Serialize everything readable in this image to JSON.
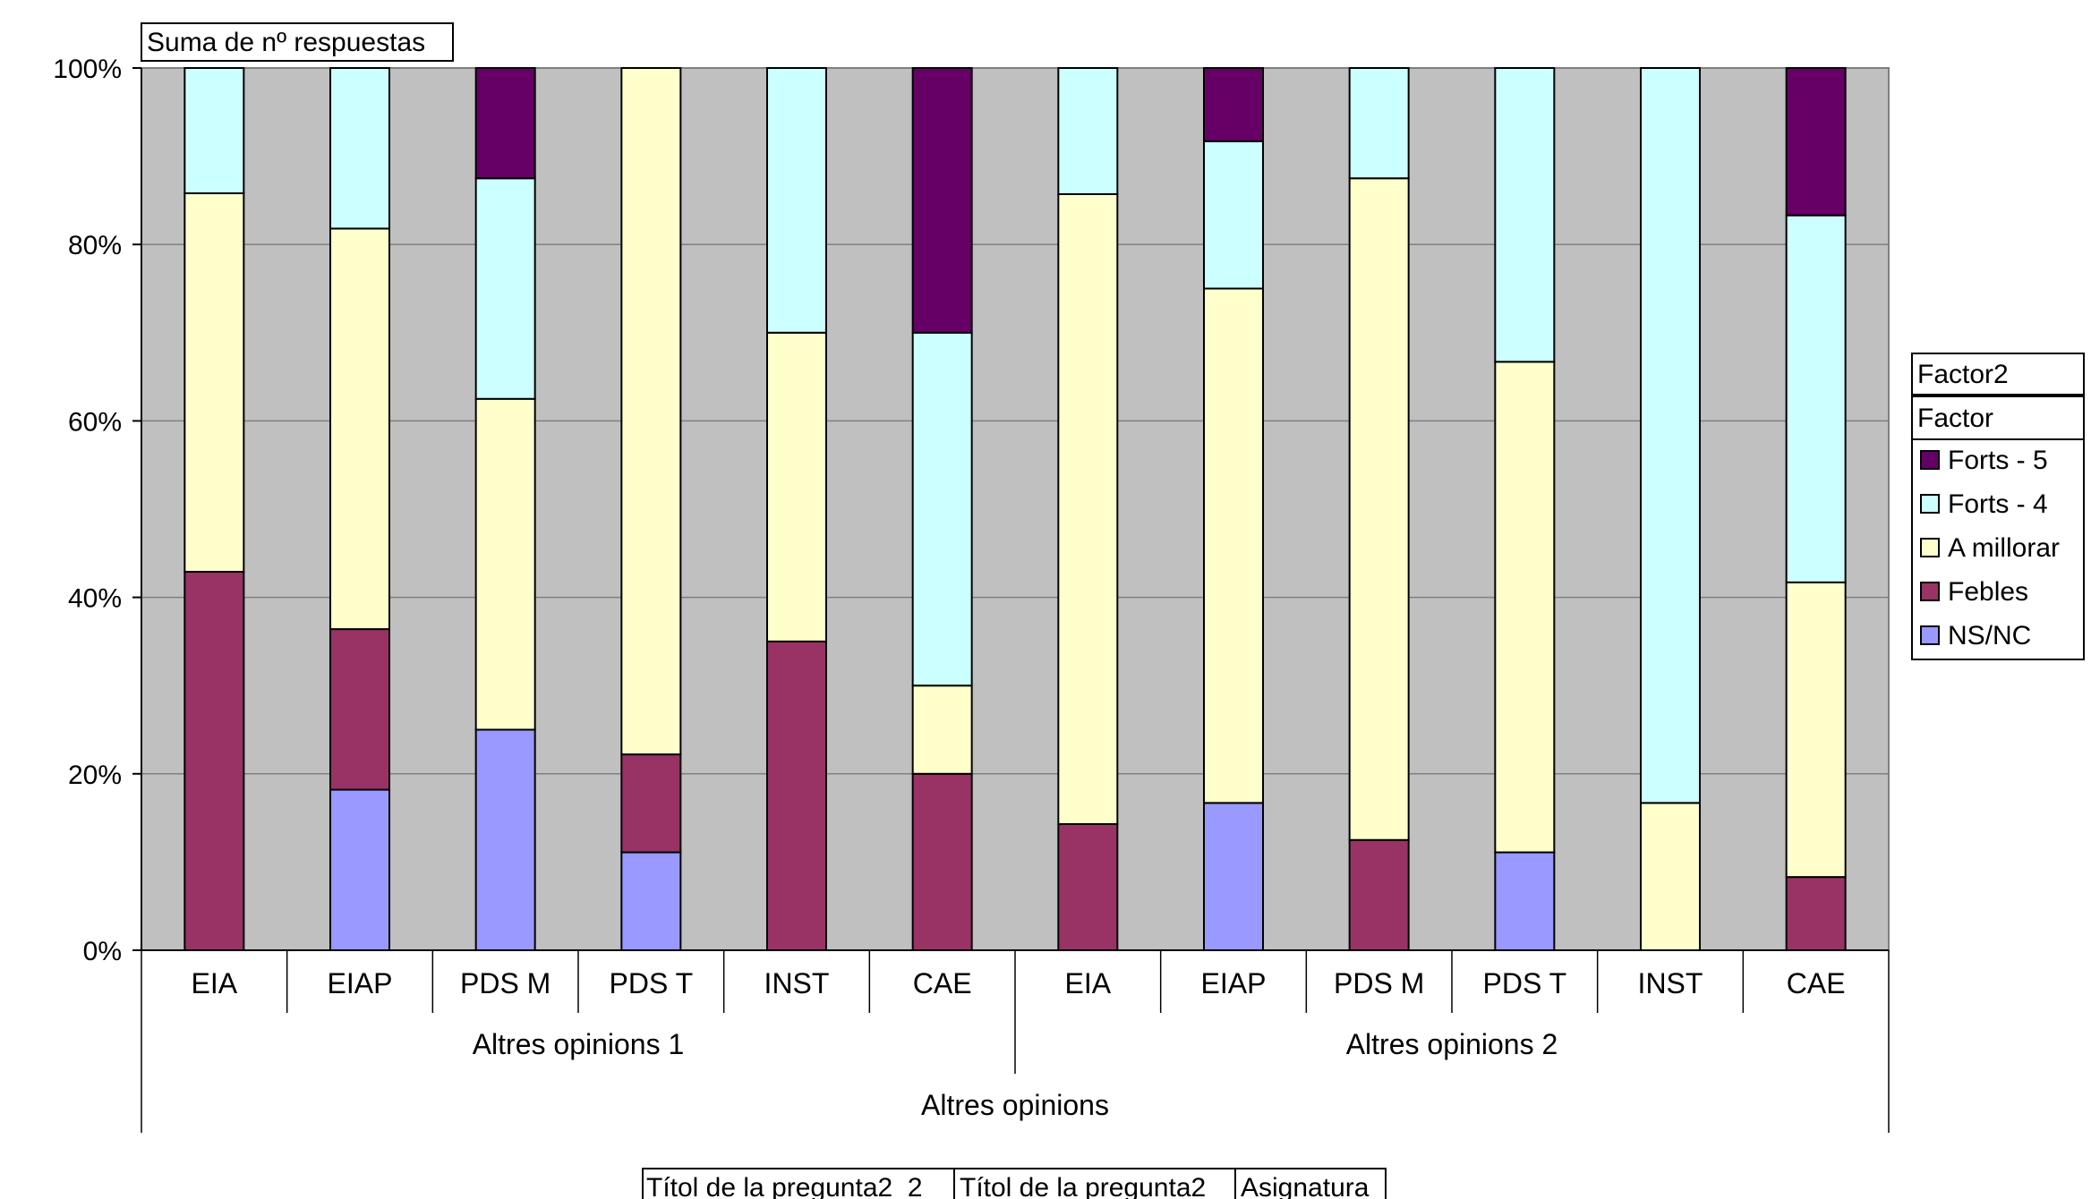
{
  "chart_data": {
    "type": "bar",
    "stacked": true,
    "percent_stacked": true,
    "data_field_button": "Suma de nº respuestas",
    "legend": {
      "header_button": "Factor2",
      "title": "Factor",
      "placement": "right",
      "entries": [
        "Forts - 5",
        "Forts - 4",
        "A millorar",
        "Febles",
        "NS/NC"
      ]
    },
    "categories": [
      "EIA",
      "EIAP",
      "PDS M",
      "PDS T",
      "INST",
      "CAE",
      "EIA",
      "EIAP",
      "PDS M",
      "PDS T",
      "INST",
      "CAE"
    ],
    "groups": [
      {
        "label": "Altres opinions 1",
        "span": 6
      },
      {
        "label": "Altres opinions 2",
        "span": 6
      }
    ],
    "outer_group": "Altres opinions",
    "series": [
      {
        "name": "NS/NC",
        "color": "#9999FF",
        "values": [
          0,
          18.2,
          25.0,
          11.1,
          0,
          0,
          0,
          16.7,
          0,
          11.1,
          0,
          0
        ]
      },
      {
        "name": "Febles",
        "color": "#993366",
        "values": [
          42.9,
          18.2,
          0,
          11.1,
          35.0,
          20.0,
          14.3,
          0,
          12.5,
          0,
          0,
          8.3
        ]
      },
      {
        "name": "A millorar",
        "color": "#FFFFCC",
        "values": [
          42.9,
          45.4,
          37.5,
          77.8,
          35.0,
          10.0,
          71.4,
          58.3,
          75.0,
          55.6,
          16.7,
          33.4
        ]
      },
      {
        "name": "Forts - 4",
        "color": "#CCFFFF",
        "values": [
          14.2,
          18.2,
          25.0,
          0,
          30.0,
          40.0,
          14.3,
          16.7,
          12.5,
          33.3,
          83.3,
          41.6
        ]
      },
      {
        "name": "Forts - 5",
        "color": "#660066",
        "values": [
          0,
          0,
          12.5,
          0,
          0,
          30.0,
          0,
          8.3,
          0,
          0,
          0,
          16.7
        ]
      }
    ],
    "y_ticks": [
      "0%",
      "20%",
      "40%",
      "60%",
      "80%",
      "100%"
    ],
    "ylim": [
      0,
      100
    ],
    "plot_background": "#C0C0C0",
    "grid": true,
    "row_field_buttons": [
      "Títol de la pregunta2_2",
      "Títol de la pregunta2",
      "Asignatura"
    ]
  }
}
